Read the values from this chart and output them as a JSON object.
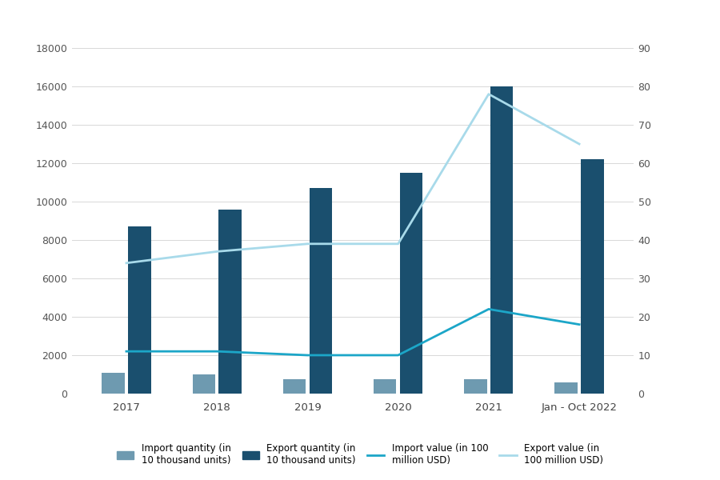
{
  "categories": [
    "2017",
    "2018",
    "2019",
    "2020",
    "2021",
    "Jan - Oct 2022"
  ],
  "import_quantity": [
    1100,
    1000,
    750,
    750,
    750,
    600
  ],
  "export_quantity": [
    8700,
    9600,
    10700,
    11500,
    16000,
    12200
  ],
  "import_value": [
    11,
    11,
    10,
    10,
    22,
    18
  ],
  "export_value": [
    34,
    37,
    39,
    39,
    78,
    65
  ],
  "bar_color_import": "#6e9ab0",
  "bar_color_export": "#1a4f6e",
  "line_color_import": "#1ca6c8",
  "line_color_export": "#a8daea",
  "background_color": "#ffffff",
  "ylim_left": [
    0,
    18000
  ],
  "ylim_right": [
    0,
    90
  ],
  "yticks_left": [
    0,
    2000,
    4000,
    6000,
    8000,
    10000,
    12000,
    14000,
    16000,
    18000
  ],
  "yticks_right": [
    0,
    10,
    20,
    30,
    40,
    50,
    60,
    70,
    80,
    90
  ],
  "legend_labels": [
    "Import quantity (in\n10 thousand units)",
    "Export quantity (in\n10 thousand units)",
    "Import value (in 100\nmillion USD)",
    "Export value (in\n100 million USD)"
  ],
  "figsize": [
    9.0,
    6.0
  ],
  "dpi": 100
}
